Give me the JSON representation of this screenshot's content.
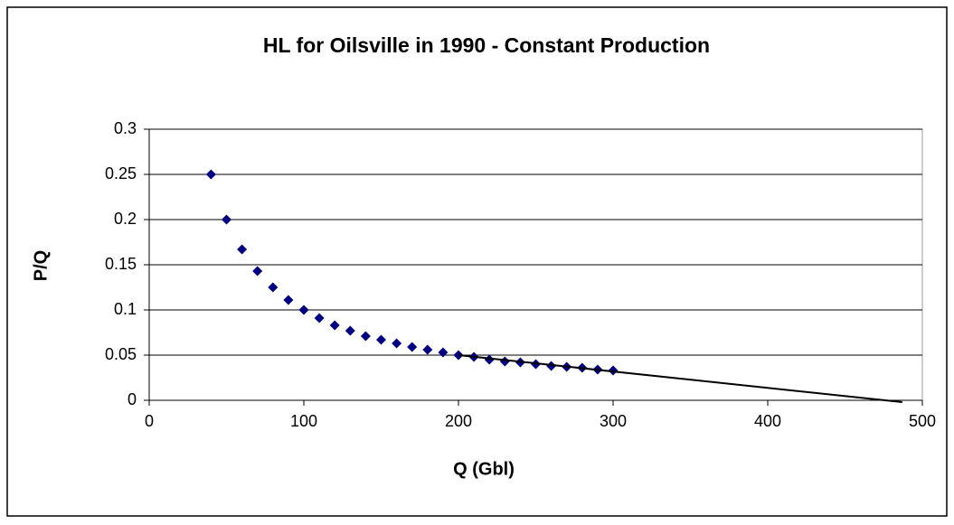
{
  "chart_data": {
    "type": "scatter",
    "title": "HL for Oilsville in 1990 - Constant Production",
    "xlabel": "Q (Gbl)",
    "ylabel": "P/Q",
    "series": [
      {
        "color": "#000080",
        "mode": "markers",
        "x": [
          40,
          50,
          60,
          70,
          80,
          90,
          100,
          110,
          120,
          130,
          140,
          150,
          160,
          170,
          180,
          190,
          200,
          210,
          220,
          230,
          240,
          250,
          260,
          270,
          280,
          290,
          300
        ],
        "values": [
          0.25,
          0.2,
          0.167,
          0.143,
          0.125,
          0.111,
          0.1,
          0.091,
          0.083,
          0.077,
          0.071,
          0.067,
          0.063,
          0.059,
          0.056,
          0.053,
          0.05,
          0.048,
          0.045,
          0.043,
          0.042,
          0.04,
          0.038,
          0.037,
          0.036,
          0.034,
          0.033
        ]
      },
      {
        "color": "#000000",
        "mode": "line",
        "x": [
          200,
          487
        ],
        "values": [
          0.05,
          -0.002
        ]
      }
    ],
    "xlim": [
      0,
      500
    ],
    "xticks": [
      0,
      100,
      200,
      300,
      400,
      500
    ],
    "ylim": [
      0,
      0.3
    ],
    "yticks": [
      0,
      0.05,
      0.1,
      0.15,
      0.2,
      0.25,
      0.3
    ],
    "grid": true
  }
}
